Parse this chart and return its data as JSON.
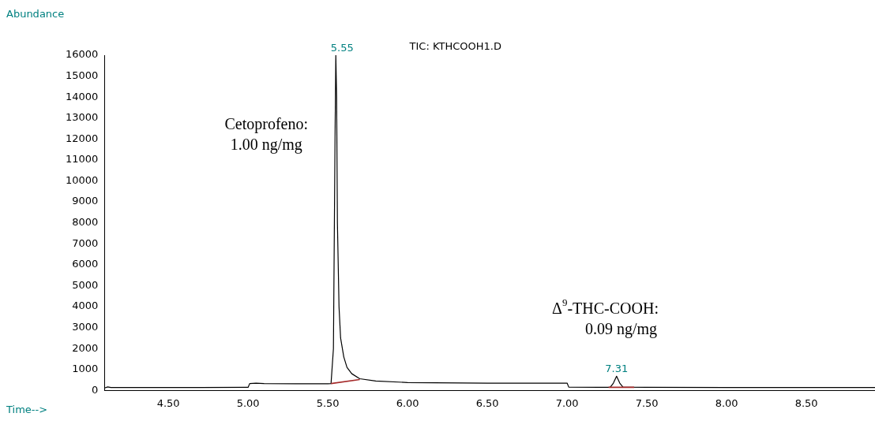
{
  "chart_data": {
    "type": "line",
    "title": "TIC: KTHCOOH1.D",
    "xlabel": "Time-->",
    "ylabel": "Abundance",
    "xlim": [
      4.1,
      8.93
    ],
    "xticks": [
      {
        "value": 4.5,
        "label": "4.50"
      },
      {
        "value": 5,
        "label": "5.00"
      },
      {
        "value": 5.5,
        "label": "5.50"
      },
      {
        "value": 6,
        "label": "6.00"
      },
      {
        "value": 6.5,
        "label": "6.50"
      },
      {
        "value": 7,
        "label": "7.00"
      },
      {
        "value": 7.5,
        "label": "7.50"
      },
      {
        "value": 8,
        "label": "8.00"
      },
      {
        "value": 8.5,
        "label": "8.50"
      }
    ],
    "ylim": [
      0,
      16000
    ],
    "yticks": [
      0,
      1000,
      2000,
      3000,
      4000,
      5000,
      6000,
      7000,
      8000,
      9000,
      10000,
      11000,
      12000,
      13000,
      14000,
      15000,
      16000
    ],
    "grid": false,
    "legend": false,
    "marker": "none",
    "line_style": "solid",
    "series": [
      {
        "color": "#000000",
        "x": [
          4.1,
          4.12,
          4.14,
          4.5,
          4.99,
          5.0,
          5.01,
          5.05,
          5.1,
          5.3,
          5.5,
          5.52,
          5.535,
          5.545,
          5.55,
          5.555,
          5.56,
          5.57,
          5.58,
          5.6,
          5.62,
          5.65,
          5.7,
          5.8,
          6.0,
          6.5,
          6.99,
          7.0,
          7.01,
          7.2,
          7.27,
          7.29,
          7.31,
          7.33,
          7.35,
          7.5,
          8.0,
          8.5,
          8.93
        ],
        "values": [
          120,
          170,
          140,
          140,
          150,
          150,
          330,
          350,
          330,
          320,
          320,
          330,
          2000,
          12000,
          16000,
          14000,
          8000,
          4000,
          2500,
          1600,
          1100,
          800,
          560,
          450,
          380,
          350,
          350,
          350,
          160,
          150,
          150,
          350,
          680,
          350,
          160,
          150,
          140,
          140,
          140
        ]
      },
      {
        "color": "#a52a2a",
        "x": [
          5.52,
          5.7
        ],
        "values": [
          330,
          520
        ]
      },
      {
        "color": "#a52a2a",
        "x": [
          7.26,
          7.42
        ],
        "values": [
          150,
          150
        ]
      }
    ],
    "annotations": [
      {
        "text": "5.55",
        "x": 5.55,
        "y": 16000
      },
      {
        "text": "7.31",
        "x": 7.31,
        "y": 680
      },
      "Cetoprofeno:\n1.00 ng/mg",
      "Δ$^{9}$-THC-COOH:\n0.09 ng/mg"
    ]
  }
}
